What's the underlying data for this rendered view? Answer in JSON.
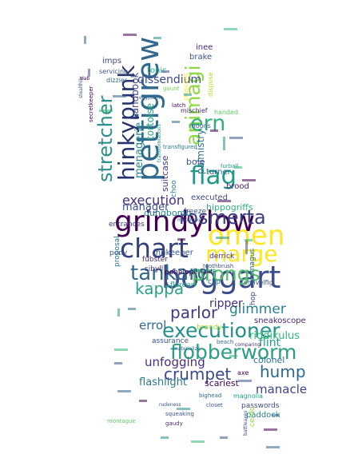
{
  "palette": {
    "dark_purple": "#440154",
    "indigo": "#3b528b",
    "blue": "#31688e",
    "teal": "#21918c",
    "green": "#35b779",
    "lime": "#90d743",
    "yellow": "#fde725",
    "navy": "#26326e"
  },
  "words": [
    {
      "text": "boggart",
      "color": "#3b4d8a"
    },
    {
      "text": "grindylow",
      "color": "#440154"
    },
    {
      "text": "executioner",
      "color": "#21918c"
    },
    {
      "text": "flobberworm",
      "color": "#2a9d84"
    },
    {
      "text": "pettigrew",
      "color": "#31688e"
    },
    {
      "text": "hinkypunk",
      "color": "#26326e"
    },
    {
      "text": "stretcher",
      "color": "#2e8f8b"
    },
    {
      "text": "animagi",
      "color": "#8fd744"
    },
    {
      "text": "omen",
      "color": "#fde725"
    },
    {
      "text": "marge",
      "color": "#fde725"
    },
    {
      "text": "chart",
      "color": "#35407a"
    },
    {
      "text": "tankard",
      "color": "#31688e"
    },
    {
      "text": "prongs",
      "color": "#4fc06a"
    },
    {
      "text": "rosmerta",
      "color": "#3a3f81"
    },
    {
      "text": "flag",
      "color": "#1f9a8a"
    },
    {
      "text": "ern",
      "color": "#30b17a"
    },
    {
      "text": "execution",
      "color": "#462f7c"
    },
    {
      "text": "crumpet",
      "color": "#3d4a89"
    },
    {
      "text": "hump",
      "color": "#2c6a8d"
    },
    {
      "text": "kappa",
      "color": "#2aa087"
    },
    {
      "text": "parlor",
      "color": "#453781"
    },
    {
      "text": "glimmer",
      "color": "#26828e"
    },
    {
      "text": "errol",
      "color": "#30698e"
    },
    {
      "text": "unfogging",
      "color": "#4a2e7f"
    },
    {
      "text": "flint",
      "color": "#1f9e89"
    },
    {
      "text": "manacle",
      "color": "#414487"
    },
    {
      "text": "flashlight",
      "color": "#2a788e"
    },
    {
      "text": "scariest",
      "color": "#440154"
    },
    {
      "text": "colonel",
      "color": "#2d708e"
    },
    {
      "text": "riddikulus",
      "color": "#35b779"
    },
    {
      "text": "sneakoscope",
      "color": "#482878"
    },
    {
      "text": "ripper",
      "color": "#472d7b"
    },
    {
      "text": "clip",
      "color": "#2e6e8e"
    },
    {
      "text": "dungbomb",
      "color": "#26828e"
    },
    {
      "text": "hippogriffs",
      "color": "#2fb47c"
    },
    {
      "text": "manager",
      "color": "#3b528b"
    },
    {
      "text": "menagerie",
      "color": "#25858e"
    },
    {
      "text": "handbook",
      "color": "#3f4788"
    },
    {
      "text": "tortoise",
      "color": "#22a884"
    },
    {
      "text": "dissendium",
      "color": "#3e4989"
    },
    {
      "text": "palmistry",
      "color": "#2c728e"
    },
    {
      "text": "bole",
      "color": "#3b528b"
    },
    {
      "text": "suitcase",
      "color": "#443a83"
    },
    {
      "text": "brood",
      "color": "#481c6e"
    },
    {
      "text": "turner",
      "color": "#31688e"
    },
    {
      "text": "executed",
      "color": "#3f4889"
    },
    {
      "text": "choo",
      "color": "#297b8e"
    },
    {
      "text": "inee",
      "color": "#472a7a"
    },
    {
      "text": "brake",
      "color": "#3b528b"
    },
    {
      "text": "tonic",
      "color": "#2db27d"
    },
    {
      "text": "imps",
      "color": "#3e4a89"
    },
    {
      "text": "innkeeper",
      "color": "#39568c"
    },
    {
      "text": "fubster",
      "color": "#472f7d"
    },
    {
      "text": "pony",
      "color": "#3c4f8a"
    },
    {
      "text": "sibyll",
      "color": "#46337e"
    },
    {
      "text": "penelope",
      "color": "#440154"
    },
    {
      "text": "florean",
      "color": "#22a785"
    },
    {
      "text": "derrick",
      "color": "#46307e"
    },
    {
      "text": "axe",
      "color": "#440154"
    },
    {
      "text": "passwords",
      "color": "#3d4d8a"
    },
    {
      "text": "paddock",
      "color": "#26828e"
    },
    {
      "text": "cerdo",
      "color": "#90d743"
    },
    {
      "text": "magnolia",
      "color": "#1fa187"
    },
    {
      "text": "brandy",
      "color": "#a0da39"
    },
    {
      "text": "assurance",
      "color": "#3b528b"
    },
    {
      "text": "hop",
      "color": "#3f4788"
    },
    {
      "text": "animagus",
      "color": "#2f6c8e"
    },
    {
      "text": "entrances",
      "color": "#46327e"
    },
    {
      "text": "freeze",
      "color": "#3a538b"
    },
    {
      "text": "proposal",
      "color": "#2c728e"
    },
    {
      "text": "moons",
      "color": "#3b528b"
    },
    {
      "text": "handed",
      "color": "#5ec962"
    },
    {
      "text": "dizzier",
      "color": "#31688e"
    },
    {
      "text": "servicing",
      "color": "#3b528b"
    },
    {
      "text": "mischief",
      "color": "#482475"
    },
    {
      "text": "crescent",
      "color": "#fde725"
    },
    {
      "text": "dispose",
      "color": "#b5de2b"
    },
    {
      "text": "transfigured",
      "color": "#2a788e"
    },
    {
      "text": "gaunt",
      "color": "#7ad151"
    },
    {
      "text": "latch",
      "color": "#440154"
    },
    {
      "text": "furball",
      "color": "#1f9e89"
    },
    {
      "text": "shrivelfig",
      "color": "#3b528b"
    },
    {
      "text": "beach",
      "color": "#31688e"
    },
    {
      "text": "squeaking",
      "color": "#3b528b"
    },
    {
      "text": "gaudy",
      "color": "#482878"
    },
    {
      "text": "sixteenth",
      "color": "#21918c"
    },
    {
      "text": "toothbrush",
      "color": "#3b528b"
    },
    {
      "text": "montague",
      "color": "#5ec962"
    },
    {
      "text": "bighead",
      "color": "#31688e"
    },
    {
      "text": "closet",
      "color": "#3b528b"
    },
    {
      "text": "secretkeeper",
      "color": "#440154"
    },
    {
      "text": "stealthily",
      "color": "#3b528b"
    },
    {
      "text": "slab",
      "color": "#440154"
    },
    {
      "text": "egyptian",
      "color": "#31688e"
    },
    {
      "text": "battleaxes",
      "color": "#3b528b"
    },
    {
      "text": "comparing",
      "color": "#482878"
    },
    {
      "text": "materialize",
      "color": "#31688e"
    },
    {
      "text": "rudeness",
      "color": "#3b528b"
    },
    {
      "text": "transformations",
      "color": "#21918c"
    },
    {
      "text": "motorbike",
      "color": "#3b528b"
    },
    {
      "text": "howl",
      "color": "#440154"
    }
  ]
}
